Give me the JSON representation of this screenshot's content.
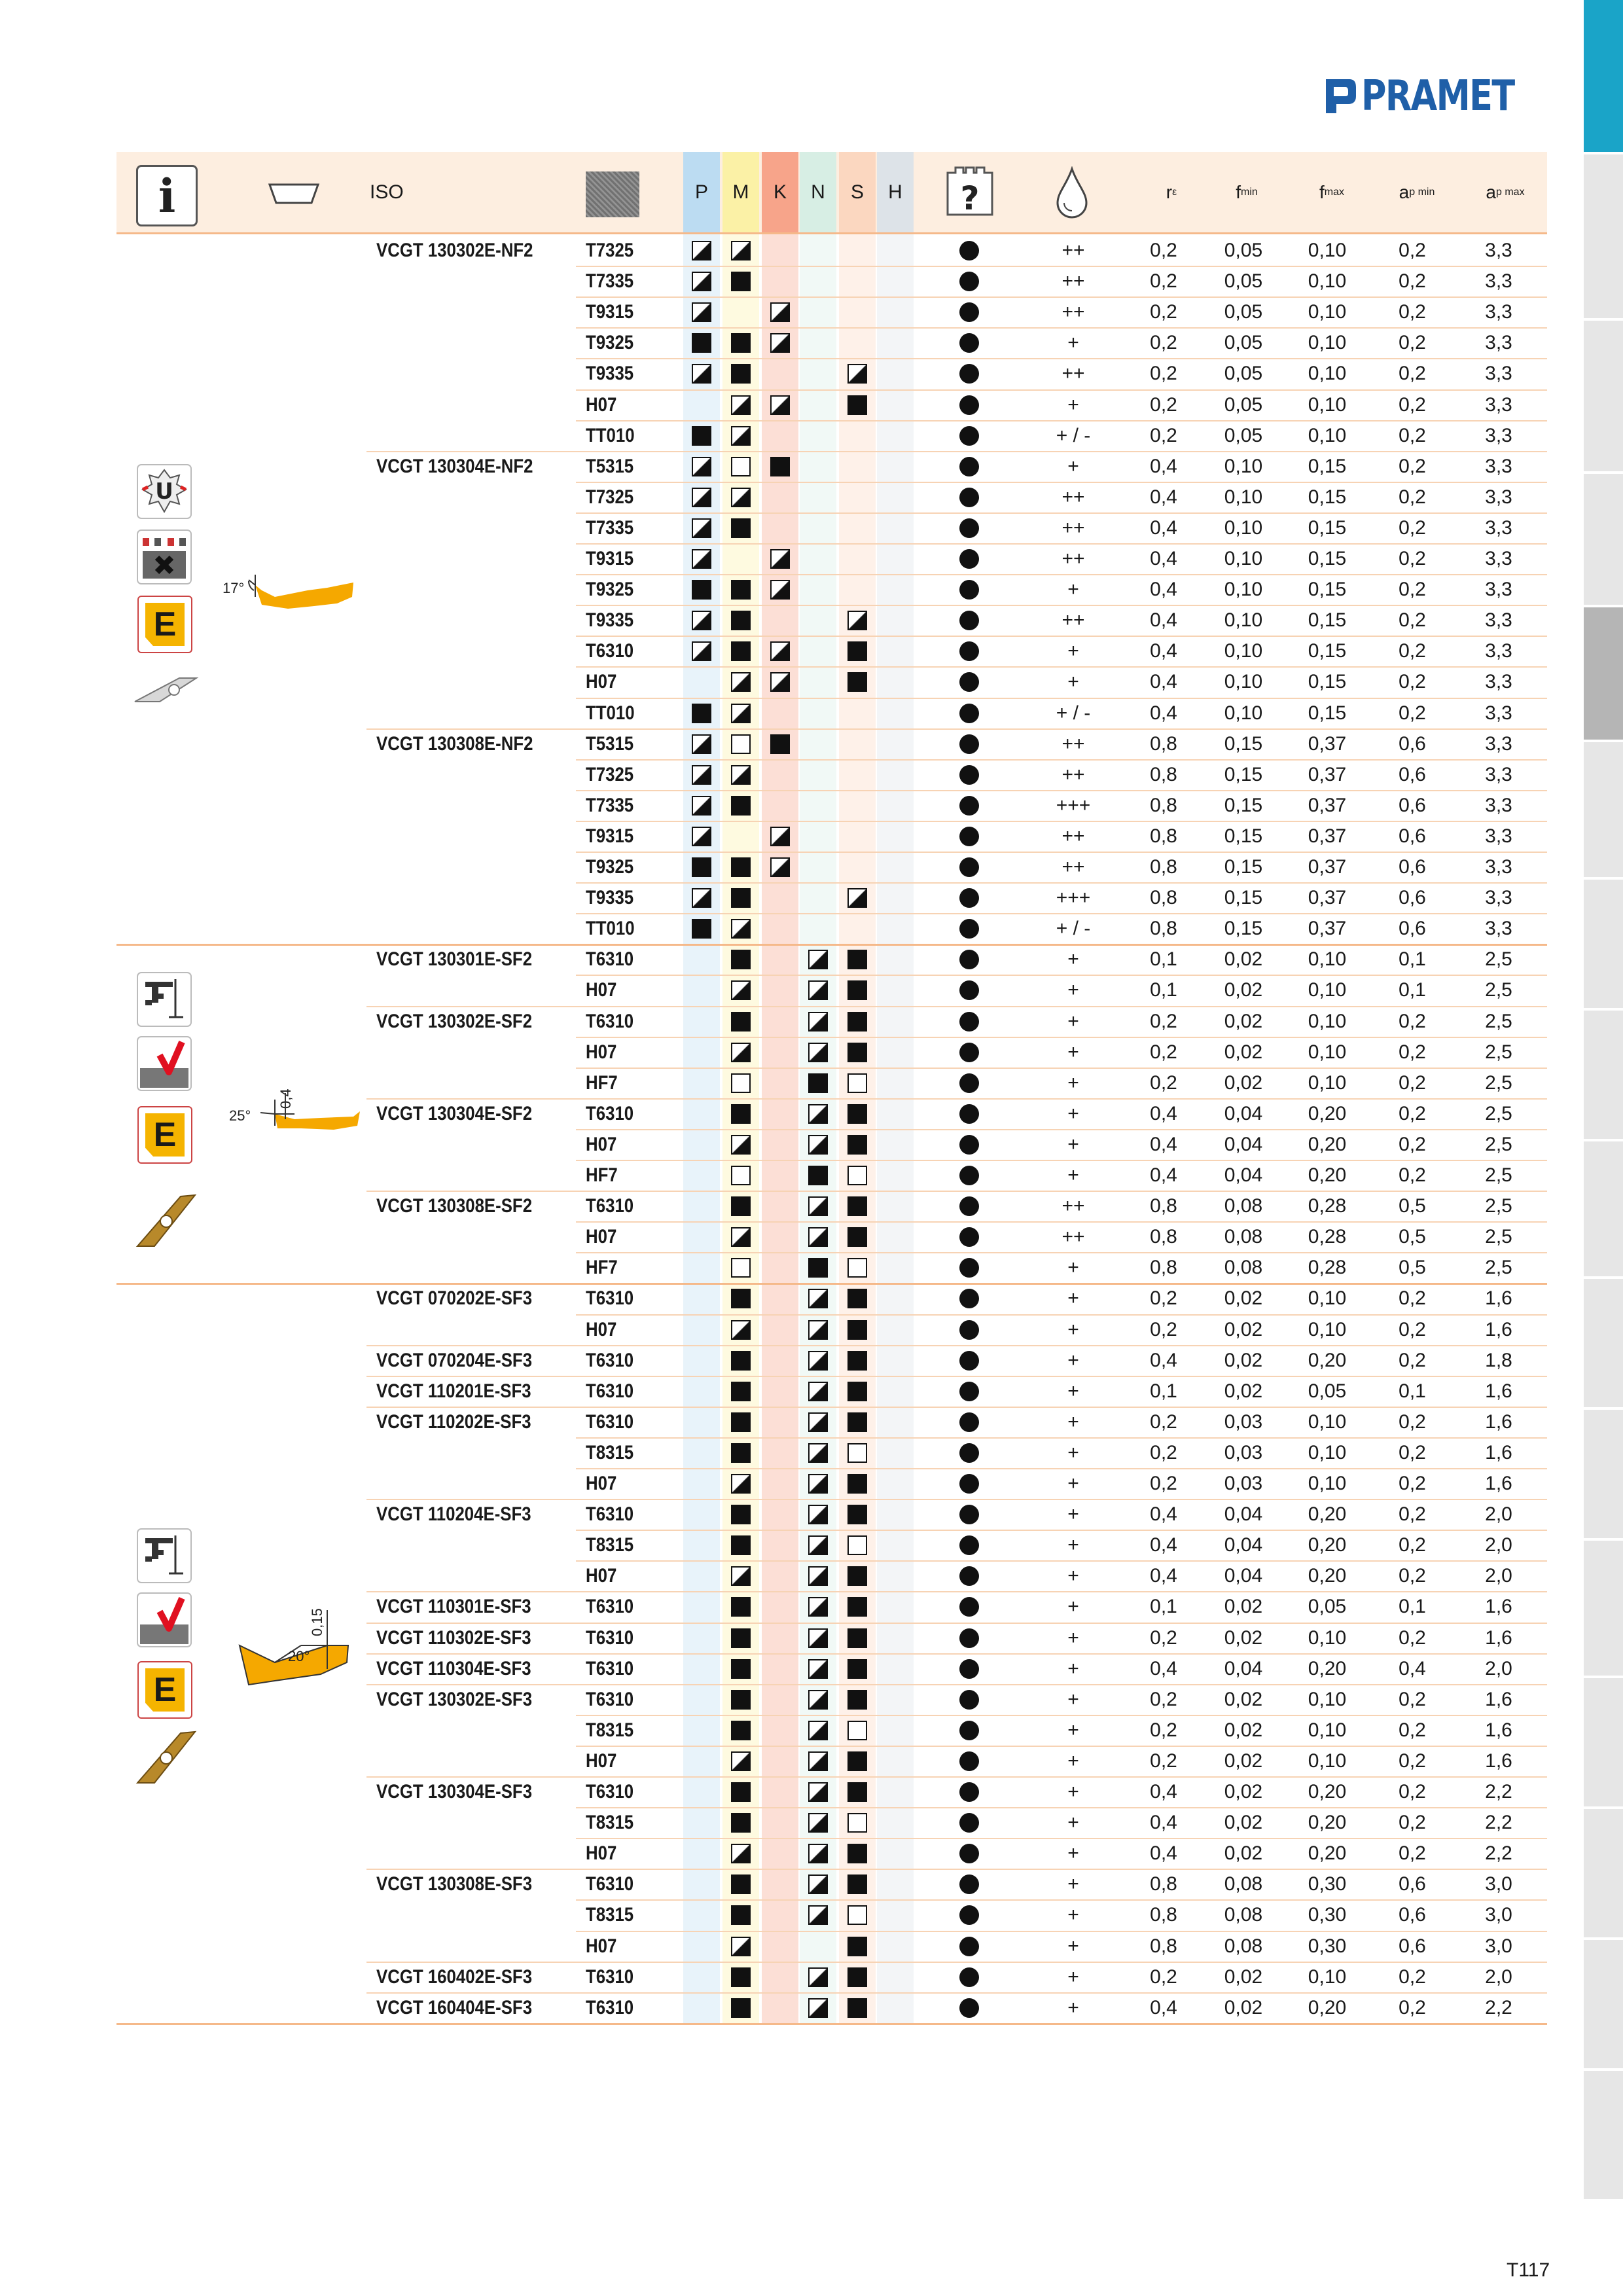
{
  "brand": {
    "name": "PRAMET",
    "color": "#1f5fa8"
  },
  "page_number": "T117",
  "header": {
    "iso": "ISO",
    "materials": [
      "P",
      "M",
      "K",
      "N",
      "S",
      "H"
    ],
    "material_colors": [
      "#bcdcf2",
      "#fbf1a6",
      "#f7a48a",
      "#d7eee4",
      "#fbd7c0",
      "#dde3e8"
    ],
    "re": "r",
    "re_sub": "ε",
    "fmin": "f",
    "fmin_sub": "min",
    "fmax": "f",
    "fmax_sub": "max",
    "apmin": "a",
    "apmin_sub": "p min",
    "apmax": "a",
    "apmax_sub": "p max"
  },
  "groups": [
    {
      "angle_label": "17°",
      "extra_label": ""
    },
    {
      "angle_label": "25°",
      "extra_label": "0,4"
    },
    {
      "angle_label": "20°",
      "extra_label": "0,15"
    }
  ],
  "rows": [
    {
      "iso": "VCGT 130302E-NF2",
      "grade": "T7325",
      "sym": [
        "h",
        "h",
        "",
        "",
        "",
        ""
      ],
      "cool": "++",
      "re": "0,2",
      "fmin": "0,05",
      "fmax": "0,10",
      "apmin": "0,2",
      "apmax": "3,3"
    },
    {
      "iso": "",
      "grade": "T7335",
      "sym": [
        "h",
        "f",
        "",
        "",
        "",
        ""
      ],
      "cool": "++",
      "re": "0,2",
      "fmin": "0,05",
      "fmax": "0,10",
      "apmin": "0,2",
      "apmax": "3,3"
    },
    {
      "iso": "",
      "grade": "T9315",
      "sym": [
        "h",
        "",
        "h",
        "",
        "",
        ""
      ],
      "cool": "++",
      "re": "0,2",
      "fmin": "0,05",
      "fmax": "0,10",
      "apmin": "0,2",
      "apmax": "3,3"
    },
    {
      "iso": "",
      "grade": "T9325",
      "sym": [
        "f",
        "f",
        "h",
        "",
        "",
        ""
      ],
      "cool": "+",
      "re": "0,2",
      "fmin": "0,05",
      "fmax": "0,10",
      "apmin": "0,2",
      "apmax": "3,3"
    },
    {
      "iso": "",
      "grade": "T9335",
      "sym": [
        "h",
        "f",
        "",
        "",
        "h",
        ""
      ],
      "cool": "++",
      "re": "0,2",
      "fmin": "0,05",
      "fmax": "0,10",
      "apmin": "0,2",
      "apmax": "3,3"
    },
    {
      "iso": "",
      "grade": "H07",
      "sym": [
        "",
        "h",
        "h",
        "",
        "f",
        ""
      ],
      "cool": "+",
      "re": "0,2",
      "fmin": "0,05",
      "fmax": "0,10",
      "apmin": "0,2",
      "apmax": "3,3"
    },
    {
      "iso": "",
      "grade": "TT010",
      "sym": [
        "f",
        "h",
        "",
        "",
        "",
        ""
      ],
      "cool": "+ / -",
      "re": "0,2",
      "fmin": "0,05",
      "fmax": "0,10",
      "apmin": "0,2",
      "apmax": "3,3"
    },
    {
      "iso": "VCGT 130304E-NF2",
      "grade": "T5315",
      "sym": [
        "h",
        "e",
        "f",
        "",
        "",
        ""
      ],
      "cool": "+",
      "re": "0,4",
      "fmin": "0,10",
      "fmax": "0,15",
      "apmin": "0,2",
      "apmax": "3,3"
    },
    {
      "iso": "",
      "grade": "T7325",
      "sym": [
        "h",
        "h",
        "",
        "",
        "",
        ""
      ],
      "cool": "++",
      "re": "0,4",
      "fmin": "0,10",
      "fmax": "0,15",
      "apmin": "0,2",
      "apmax": "3,3"
    },
    {
      "iso": "",
      "grade": "T7335",
      "sym": [
        "h",
        "f",
        "",
        "",
        "",
        ""
      ],
      "cool": "++",
      "re": "0,4",
      "fmin": "0,10",
      "fmax": "0,15",
      "apmin": "0,2",
      "apmax": "3,3"
    },
    {
      "iso": "",
      "grade": "T9315",
      "sym": [
        "h",
        "",
        "h",
        "",
        "",
        ""
      ],
      "cool": "++",
      "re": "0,4",
      "fmin": "0,10",
      "fmax": "0,15",
      "apmin": "0,2",
      "apmax": "3,3"
    },
    {
      "iso": "",
      "grade": "T9325",
      "sym": [
        "f",
        "f",
        "h",
        "",
        "",
        ""
      ],
      "cool": "+",
      "re": "0,4",
      "fmin": "0,10",
      "fmax": "0,15",
      "apmin": "0,2",
      "apmax": "3,3"
    },
    {
      "iso": "",
      "grade": "T9335",
      "sym": [
        "h",
        "f",
        "",
        "",
        "h",
        ""
      ],
      "cool": "++",
      "re": "0,4",
      "fmin": "0,10",
      "fmax": "0,15",
      "apmin": "0,2",
      "apmax": "3,3"
    },
    {
      "iso": "",
      "grade": "T6310",
      "sym": [
        "h",
        "f",
        "h",
        "",
        "f",
        ""
      ],
      "cool": "+",
      "re": "0,4",
      "fmin": "0,10",
      "fmax": "0,15",
      "apmin": "0,2",
      "apmax": "3,3"
    },
    {
      "iso": "",
      "grade": "H07",
      "sym": [
        "",
        "h",
        "h",
        "",
        "f",
        ""
      ],
      "cool": "+",
      "re": "0,4",
      "fmin": "0,10",
      "fmax": "0,15",
      "apmin": "0,2",
      "apmax": "3,3"
    },
    {
      "iso": "",
      "grade": "TT010",
      "sym": [
        "f",
        "h",
        "",
        "",
        "",
        ""
      ],
      "cool": "+ / -",
      "re": "0,4",
      "fmin": "0,10",
      "fmax": "0,15",
      "apmin": "0,2",
      "apmax": "3,3"
    },
    {
      "iso": "VCGT 130308E-NF2",
      "grade": "T5315",
      "sym": [
        "h",
        "e",
        "f",
        "",
        "",
        ""
      ],
      "cool": "++",
      "re": "0,8",
      "fmin": "0,15",
      "fmax": "0,37",
      "apmin": "0,6",
      "apmax": "3,3"
    },
    {
      "iso": "",
      "grade": "T7325",
      "sym": [
        "h",
        "h",
        "",
        "",
        "",
        ""
      ],
      "cool": "++",
      "re": "0,8",
      "fmin": "0,15",
      "fmax": "0,37",
      "apmin": "0,6",
      "apmax": "3,3"
    },
    {
      "iso": "",
      "grade": "T7335",
      "sym": [
        "h",
        "f",
        "",
        "",
        "",
        ""
      ],
      "cool": "+++",
      "re": "0,8",
      "fmin": "0,15",
      "fmax": "0,37",
      "apmin": "0,6",
      "apmax": "3,3"
    },
    {
      "iso": "",
      "grade": "T9315",
      "sym": [
        "h",
        "",
        "h",
        "",
        "",
        ""
      ],
      "cool": "++",
      "re": "0,8",
      "fmin": "0,15",
      "fmax": "0,37",
      "apmin": "0,6",
      "apmax": "3,3"
    },
    {
      "iso": "",
      "grade": "T9325",
      "sym": [
        "f",
        "f",
        "h",
        "",
        "",
        ""
      ],
      "cool": "++",
      "re": "0,8",
      "fmin": "0,15",
      "fmax": "0,37",
      "apmin": "0,6",
      "apmax": "3,3"
    },
    {
      "iso": "",
      "grade": "T9335",
      "sym": [
        "h",
        "f",
        "",
        "",
        "h",
        ""
      ],
      "cool": "+++",
      "re": "0,8",
      "fmin": "0,15",
      "fmax": "0,37",
      "apmin": "0,6",
      "apmax": "3,3"
    },
    {
      "iso": "",
      "grade": "TT010",
      "sym": [
        "f",
        "h",
        "",
        "",
        "",
        ""
      ],
      "cool": "+ / -",
      "re": "0,8",
      "fmin": "0,15",
      "fmax": "0,37",
      "apmin": "0,6",
      "apmax": "3,3"
    },
    {
      "iso": "VCGT 130301E-SF2",
      "grade": "T6310",
      "sym": [
        "",
        "f",
        "",
        "h",
        "f",
        ""
      ],
      "cool": "+",
      "re": "0,1",
      "fmin": "0,02",
      "fmax": "0,10",
      "apmin": "0,1",
      "apmax": "2,5"
    },
    {
      "iso": "",
      "grade": "H07",
      "sym": [
        "",
        "h",
        "",
        "h",
        "f",
        ""
      ],
      "cool": "+",
      "re": "0,1",
      "fmin": "0,02",
      "fmax": "0,10",
      "apmin": "0,1",
      "apmax": "2,5"
    },
    {
      "iso": "VCGT 130302E-SF2",
      "grade": "T6310",
      "sym": [
        "",
        "f",
        "",
        "h",
        "f",
        ""
      ],
      "cool": "+",
      "re": "0,2",
      "fmin": "0,02",
      "fmax": "0,10",
      "apmin": "0,2",
      "apmax": "2,5"
    },
    {
      "iso": "",
      "grade": "H07",
      "sym": [
        "",
        "h",
        "",
        "h",
        "f",
        ""
      ],
      "cool": "+",
      "re": "0,2",
      "fmin": "0,02",
      "fmax": "0,10",
      "apmin": "0,2",
      "apmax": "2,5"
    },
    {
      "iso": "",
      "grade": "HF7",
      "sym": [
        "",
        "e",
        "",
        "f",
        "e",
        ""
      ],
      "cool": "+",
      "re": "0,2",
      "fmin": "0,02",
      "fmax": "0,10",
      "apmin": "0,2",
      "apmax": "2,5"
    },
    {
      "iso": "VCGT 130304E-SF2",
      "grade": "T6310",
      "sym": [
        "",
        "f",
        "",
        "h",
        "f",
        ""
      ],
      "cool": "+",
      "re": "0,4",
      "fmin": "0,04",
      "fmax": "0,20",
      "apmin": "0,2",
      "apmax": "2,5"
    },
    {
      "iso": "",
      "grade": "H07",
      "sym": [
        "",
        "h",
        "",
        "h",
        "f",
        ""
      ],
      "cool": "+",
      "re": "0,4",
      "fmin": "0,04",
      "fmax": "0,20",
      "apmin": "0,2",
      "apmax": "2,5"
    },
    {
      "iso": "",
      "grade": "HF7",
      "sym": [
        "",
        "e",
        "",
        "f",
        "e",
        ""
      ],
      "cool": "+",
      "re": "0,4",
      "fmin": "0,04",
      "fmax": "0,20",
      "apmin": "0,2",
      "apmax": "2,5"
    },
    {
      "iso": "VCGT 130308E-SF2",
      "grade": "T6310",
      "sym": [
        "",
        "f",
        "",
        "h",
        "f",
        ""
      ],
      "cool": "++",
      "re": "0,8",
      "fmin": "0,08",
      "fmax": "0,28",
      "apmin": "0,5",
      "apmax": "2,5"
    },
    {
      "iso": "",
      "grade": "H07",
      "sym": [
        "",
        "h",
        "",
        "h",
        "f",
        ""
      ],
      "cool": "++",
      "re": "0,8",
      "fmin": "0,08",
      "fmax": "0,28",
      "apmin": "0,5",
      "apmax": "2,5"
    },
    {
      "iso": "",
      "grade": "HF7",
      "sym": [
        "",
        "e",
        "",
        "f",
        "e",
        ""
      ],
      "cool": "+",
      "re": "0,8",
      "fmin": "0,08",
      "fmax": "0,28",
      "apmin": "0,5",
      "apmax": "2,5"
    },
    {
      "iso": "VCGT 070202E-SF3",
      "grade": "T6310",
      "sym": [
        "",
        "f",
        "",
        "h",
        "f",
        ""
      ],
      "cool": "+",
      "re": "0,2",
      "fmin": "0,02",
      "fmax": "0,10",
      "apmin": "0,2",
      "apmax": "1,6"
    },
    {
      "iso": "",
      "grade": "H07",
      "sym": [
        "",
        "h",
        "",
        "h",
        "f",
        ""
      ],
      "cool": "+",
      "re": "0,2",
      "fmin": "0,02",
      "fmax": "0,10",
      "apmin": "0,2",
      "apmax": "1,6"
    },
    {
      "iso": "VCGT 070204E-SF3",
      "grade": "T6310",
      "sym": [
        "",
        "f",
        "",
        "h",
        "f",
        ""
      ],
      "cool": "+",
      "re": "0,4",
      "fmin": "0,02",
      "fmax": "0,20",
      "apmin": "0,2",
      "apmax": "1,8"
    },
    {
      "iso": "VCGT 110201E-SF3",
      "grade": "T6310",
      "sym": [
        "",
        "f",
        "",
        "h",
        "f",
        ""
      ],
      "cool": "+",
      "re": "0,1",
      "fmin": "0,02",
      "fmax": "0,05",
      "apmin": "0,1",
      "apmax": "1,6"
    },
    {
      "iso": "VCGT 110202E-SF3",
      "grade": "T6310",
      "sym": [
        "",
        "f",
        "",
        "h",
        "f",
        ""
      ],
      "cool": "+",
      "re": "0,2",
      "fmin": "0,03",
      "fmax": "0,10",
      "apmin": "0,2",
      "apmax": "1,6"
    },
    {
      "iso": "",
      "grade": "T8315",
      "sym": [
        "",
        "f",
        "",
        "h",
        "e",
        ""
      ],
      "cool": "+",
      "re": "0,2",
      "fmin": "0,03",
      "fmax": "0,10",
      "apmin": "0,2",
      "apmax": "1,6"
    },
    {
      "iso": "",
      "grade": "H07",
      "sym": [
        "",
        "h",
        "",
        "h",
        "f",
        ""
      ],
      "cool": "+",
      "re": "0,2",
      "fmin": "0,03",
      "fmax": "0,10",
      "apmin": "0,2",
      "apmax": "1,6"
    },
    {
      "iso": "VCGT 110204E-SF3",
      "grade": "T6310",
      "sym": [
        "",
        "f",
        "",
        "h",
        "f",
        ""
      ],
      "cool": "+",
      "re": "0,4",
      "fmin": "0,04",
      "fmax": "0,20",
      "apmin": "0,2",
      "apmax": "2,0"
    },
    {
      "iso": "",
      "grade": "T8315",
      "sym": [
        "",
        "f",
        "",
        "h",
        "e",
        ""
      ],
      "cool": "+",
      "re": "0,4",
      "fmin": "0,04",
      "fmax": "0,20",
      "apmin": "0,2",
      "apmax": "2,0"
    },
    {
      "iso": "",
      "grade": "H07",
      "sym": [
        "",
        "h",
        "",
        "h",
        "f",
        ""
      ],
      "cool": "+",
      "re": "0,4",
      "fmin": "0,04",
      "fmax": "0,20",
      "apmin": "0,2",
      "apmax": "2,0"
    },
    {
      "iso": "VCGT 110301E-SF3",
      "grade": "T6310",
      "sym": [
        "",
        "f",
        "",
        "h",
        "f",
        ""
      ],
      "cool": "+",
      "re": "0,1",
      "fmin": "0,02",
      "fmax": "0,05",
      "apmin": "0,1",
      "apmax": "1,6"
    },
    {
      "iso": "VCGT 110302E-SF3",
      "grade": "T6310",
      "sym": [
        "",
        "f",
        "",
        "h",
        "f",
        ""
      ],
      "cool": "+",
      "re": "0,2",
      "fmin": "0,02",
      "fmax": "0,10",
      "apmin": "0,2",
      "apmax": "1,6"
    },
    {
      "iso": "VCGT 110304E-SF3",
      "grade": "T6310",
      "sym": [
        "",
        "f",
        "",
        "h",
        "f",
        ""
      ],
      "cool": "+",
      "re": "0,4",
      "fmin": "0,04",
      "fmax": "0,20",
      "apmin": "0,4",
      "apmax": "2,0"
    },
    {
      "iso": "VCGT 130302E-SF3",
      "grade": "T6310",
      "sym": [
        "",
        "f",
        "",
        "h",
        "f",
        ""
      ],
      "cool": "+",
      "re": "0,2",
      "fmin": "0,02",
      "fmax": "0,10",
      "apmin": "0,2",
      "apmax": "1,6"
    },
    {
      "iso": "",
      "grade": "T8315",
      "sym": [
        "",
        "f",
        "",
        "h",
        "e",
        ""
      ],
      "cool": "+",
      "re": "0,2",
      "fmin": "0,02",
      "fmax": "0,10",
      "apmin": "0,2",
      "apmax": "1,6"
    },
    {
      "iso": "",
      "grade": "H07",
      "sym": [
        "",
        "h",
        "",
        "h",
        "f",
        ""
      ],
      "cool": "+",
      "re": "0,2",
      "fmin": "0,02",
      "fmax": "0,10",
      "apmin": "0,2",
      "apmax": "1,6"
    },
    {
      "iso": "VCGT 130304E-SF3",
      "grade": "T6310",
      "sym": [
        "",
        "f",
        "",
        "h",
        "f",
        ""
      ],
      "cool": "+",
      "re": "0,4",
      "fmin": "0,02",
      "fmax": "0,20",
      "apmin": "0,2",
      "apmax": "2,2"
    },
    {
      "iso": "",
      "grade": "T8315",
      "sym": [
        "",
        "f",
        "",
        "h",
        "e",
        ""
      ],
      "cool": "+",
      "re": "0,4",
      "fmin": "0,02",
      "fmax": "0,20",
      "apmin": "0,2",
      "apmax": "2,2"
    },
    {
      "iso": "",
      "grade": "H07",
      "sym": [
        "",
        "h",
        "",
        "h",
        "f",
        ""
      ],
      "cool": "+",
      "re": "0,4",
      "fmin": "0,02",
      "fmax": "0,20",
      "apmin": "0,2",
      "apmax": "2,2"
    },
    {
      "iso": "VCGT 130308E-SF3",
      "grade": "T6310",
      "sym": [
        "",
        "f",
        "",
        "h",
        "f",
        ""
      ],
      "cool": "+",
      "re": "0,8",
      "fmin": "0,08",
      "fmax": "0,30",
      "apmin": "0,6",
      "apmax": "3,0"
    },
    {
      "iso": "",
      "grade": "T8315",
      "sym": [
        "",
        "f",
        "",
        "h",
        "e",
        ""
      ],
      "cool": "+",
      "re": "0,8",
      "fmin": "0,08",
      "fmax": "0,30",
      "apmin": "0,6",
      "apmax": "3,0"
    },
    {
      "iso": "",
      "grade": "H07",
      "sym": [
        "",
        "h",
        "",
        "",
        "f",
        ""
      ],
      "cool": "+",
      "re": "0,8",
      "fmin": "0,08",
      "fmax": "0,30",
      "apmin": "0,6",
      "apmax": "3,0"
    },
    {
      "iso": "VCGT 160402E-SF3",
      "grade": "T6310",
      "sym": [
        "",
        "f",
        "",
        "h",
        "f",
        ""
      ],
      "cool": "+",
      "re": "0,2",
      "fmin": "0,02",
      "fmax": "0,10",
      "apmin": "0,2",
      "apmax": "2,0"
    },
    {
      "iso": "VCGT 160404E-SF3",
      "grade": "T6310",
      "sym": [
        "",
        "f",
        "",
        "h",
        "f",
        ""
      ],
      "cool": "+",
      "re": "0,4",
      "fmin": "0,02",
      "fmax": "0,20",
      "apmin": "0,2",
      "apmax": "2,2"
    }
  ]
}
